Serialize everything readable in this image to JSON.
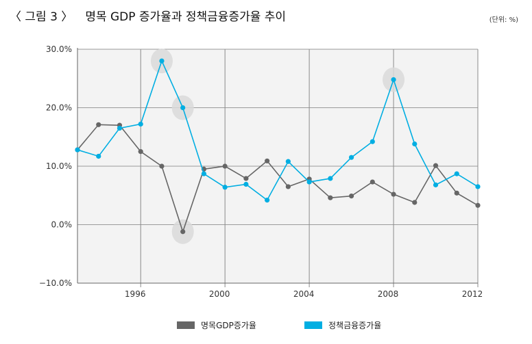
{
  "header": {
    "figure_label": "〈 그림 3 〉",
    "title": "명목 GDP 증가율과 정책금융증가율 추이",
    "unit": "(단위: %)"
  },
  "chart_data": {
    "type": "line",
    "title": "명목 GDP 증가율과 정책금융증가율 추이",
    "unit": "(단위: %)",
    "xlim": [
      1993,
      2012
    ],
    "ylim": [
      -10,
      30
    ],
    "x_ticks": [
      1996,
      2000,
      2004,
      2008,
      2012
    ],
    "x_tick_labels": [
      "1996",
      "2000",
      "2004",
      "2008",
      "2012"
    ],
    "y_ticks": [
      -10,
      0,
      10,
      20,
      30
    ],
    "y_tick_labels": [
      "−10.0%",
      "0.0%",
      "10.0%",
      "20.0%",
      "30.0%"
    ],
    "grid": true,
    "legend_position": "bottom",
    "x": [
      1993,
      1994,
      1995,
      1996,
      1997,
      1998,
      1999,
      2000,
      2001,
      2002,
      2003,
      2004,
      2005,
      2006,
      2007,
      2008,
      2009,
      2010,
      2011,
      2012
    ],
    "series": [
      {
        "name": "명목GDP증가율",
        "color": "#666666",
        "values": [
          12.8,
          17.1,
          17.0,
          12.5,
          10.0,
          -1.2,
          9.5,
          10.0,
          7.9,
          10.9,
          6.5,
          7.8,
          4.6,
          4.9,
          7.3,
          5.2,
          3.8,
          10.1,
          5.4,
          3.3
        ]
      },
      {
        "name": "정책금융증가율",
        "color": "#00aee2",
        "values": [
          12.8,
          11.7,
          16.5,
          17.2,
          28.0,
          20.0,
          8.7,
          6.4,
          6.9,
          4.2,
          10.8,
          7.3,
          7.9,
          11.5,
          14.2,
          24.8,
          13.8,
          6.8,
          8.7,
          6.5
        ]
      }
    ],
    "highlighted_points": [
      {
        "series": "정책금융증가율",
        "x": 1997
      },
      {
        "series": "정책금융증가율",
        "x": 1998
      },
      {
        "series": "명목GDP증가율",
        "x": 1998
      },
      {
        "series": "정책금융증가율",
        "x": 2008
      }
    ]
  }
}
